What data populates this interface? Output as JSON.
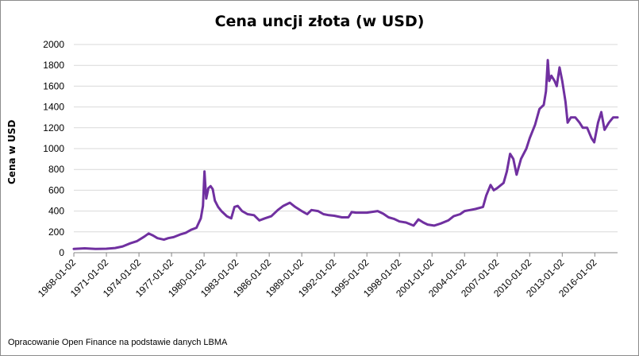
{
  "chart_data": {
    "type": "line",
    "title": "Cena uncji złota (w USD)",
    "ylabel": "Cena w USD",
    "xlabel": "",
    "ylim": [
      0,
      2000
    ],
    "yticks": [
      "0",
      "200",
      "400",
      "600",
      "800",
      "1000",
      "1200",
      "1400",
      "1600",
      "1800",
      "2000"
    ],
    "xlim": [
      1968.0,
      2018.1
    ],
    "xticks": [
      "1968-01-02",
      "1971-01-02",
      "1974-01-02",
      "1977-01-02",
      "1980-01-02",
      "1983-01-02",
      "1986-01-02",
      "1989-01-02",
      "1992-01-02",
      "1995-01-02",
      "1998-01-02",
      "2001-01-02",
      "2004-01-02",
      "2007-01-02",
      "2010-01-02",
      "2013-01-02",
      "2016-01-02"
    ],
    "grid": "horizontal",
    "series_color": "#7030a0",
    "series": [
      {
        "x": [
          1968.0,
          1969.0,
          1970.0,
          1971.0,
          1971.8,
          1972.5,
          1973.2,
          1973.8,
          1974.5,
          1974.9,
          1975.3,
          1975.7,
          1976.3,
          1976.7,
          1977.2,
          1977.8,
          1978.3,
          1978.8,
          1979.3,
          1979.7,
          1979.9,
          1980.04,
          1980.1,
          1980.2,
          1980.4,
          1980.6,
          1980.8,
          1981.0,
          1981.3,
          1981.6,
          1982.1,
          1982.5,
          1982.8,
          1983.1,
          1983.5,
          1984.0,
          1984.6,
          1985.1,
          1985.6,
          1986.2,
          1986.8,
          1987.3,
          1987.9,
          1988.4,
          1989.0,
          1989.5,
          1989.9,
          1990.5,
          1991.0,
          1991.5,
          1992.0,
          1992.7,
          1993.3,
          1993.6,
          1994.0,
          1995.0,
          1996.0,
          1996.5,
          1997.0,
          1997.5,
          1998.0,
          1998.6,
          1999.3,
          1999.6,
          1999.75,
          2000.2,
          2000.6,
          2001.2,
          2001.8,
          2002.5,
          2003.0,
          2003.6,
          2004.0,
          2004.5,
          2005.0,
          2005.7,
          2006.0,
          2006.4,
          2006.7,
          2007.0,
          2007.6,
          2007.9,
          2008.2,
          2008.5,
          2008.8,
          2009.2,
          2009.7,
          2010.0,
          2010.5,
          2010.9,
          2011.3,
          2011.5,
          2011.67,
          2011.8,
          2012.0,
          2012.3,
          2012.5,
          2012.75,
          2013.0,
          2013.3,
          2013.5,
          2013.8,
          2014.2,
          2014.6,
          2014.9,
          2015.3,
          2015.7,
          2015.95,
          2016.3,
          2016.6,
          2016.9,
          2017.3,
          2017.7,
          2018.1
        ],
        "y": [
          36,
          42,
          36,
          38,
          45,
          60,
          90,
          110,
          155,
          185,
          165,
          140,
          125,
          140,
          150,
          175,
          190,
          220,
          240,
          330,
          450,
          780,
          680,
          520,
          620,
          640,
          610,
          500,
          440,
          400,
          350,
          330,
          440,
          450,
          400,
          370,
          360,
          310,
          330,
          350,
          410,
          450,
          480,
          440,
          400,
          370,
          410,
          400,
          370,
          360,
          355,
          340,
          340,
          390,
          385,
          385,
          400,
          375,
          340,
          325,
          300,
          290,
          260,
          300,
          320,
          290,
          270,
          260,
          280,
          310,
          350,
          370,
          400,
          410,
          420,
          440,
          550,
          650,
          600,
          620,
          670,
          780,
          950,
          900,
          750,
          900,
          1000,
          1100,
          1230,
          1380,
          1420,
          1550,
          1850,
          1650,
          1700,
          1650,
          1600,
          1780,
          1650,
          1450,
          1250,
          1300,
          1300,
          1250,
          1200,
          1200,
          1100,
          1060,
          1250,
          1350,
          1180,
          1250,
          1300,
          1300
        ]
      }
    ]
  },
  "footer": {
    "source": "Opracowanie Open Finance na podstawie danych LBMA"
  }
}
